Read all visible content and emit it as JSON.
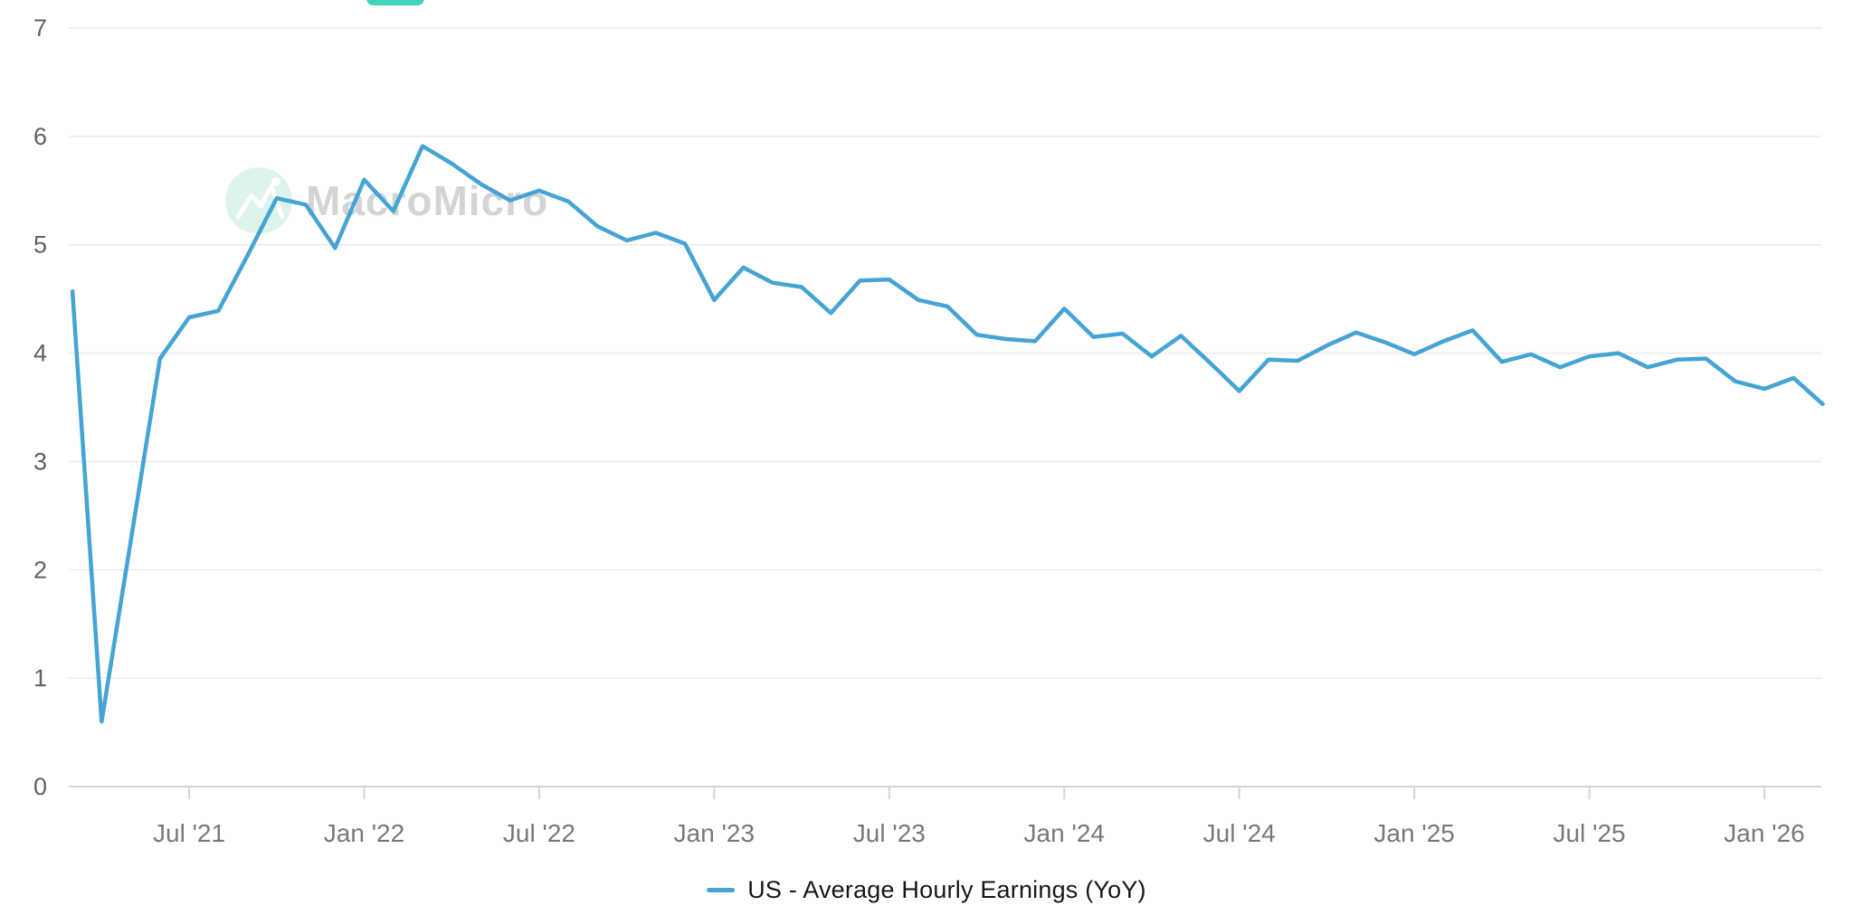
{
  "chart_data": {
    "type": "line",
    "title": "",
    "xlabel": "",
    "ylabel": "",
    "ylim": [
      0,
      7
    ],
    "y_ticks": [
      0,
      1,
      2,
      3,
      4,
      5,
      6,
      7
    ],
    "grid": true,
    "legend_position": "bottom-center",
    "x_tick_labels": [
      "Jul '21",
      "Jan '22",
      "Jul '22",
      "Jan '23",
      "Jul '23",
      "Jan '24",
      "Jul '24",
      "Jan '25",
      "Jul '25",
      "Jan '26"
    ],
    "x_tick_indices": [
      4,
      10,
      16,
      22,
      28,
      34,
      40,
      46,
      52,
      58
    ],
    "x": [
      "2021-03",
      "2021-04",
      "2021-05",
      "2021-06",
      "2021-07",
      "2021-08",
      "2021-09",
      "2021-10",
      "2021-11",
      "2021-12",
      "2022-01",
      "2022-02",
      "2022-03",
      "2022-04",
      "2022-05",
      "2022-06",
      "2022-07",
      "2022-08",
      "2022-09",
      "2022-10",
      "2022-11",
      "2022-12",
      "2023-01",
      "2023-02",
      "2023-03",
      "2023-04",
      "2023-05",
      "2023-06",
      "2023-07",
      "2023-08",
      "2023-09",
      "2023-10",
      "2023-11",
      "2023-12",
      "2024-01",
      "2024-02",
      "2024-03",
      "2024-04",
      "2024-05",
      "2024-06",
      "2024-07",
      "2024-08",
      "2024-09",
      "2024-10",
      "2024-11",
      "2024-12",
      "2025-01",
      "2025-02",
      "2025-03",
      "2025-04",
      "2025-05",
      "2025-06",
      "2025-07",
      "2025-08",
      "2025-09",
      "2025-10",
      "2025-11",
      "2025-12",
      "2026-01",
      "2026-02",
      "2026-03"
    ],
    "series": [
      {
        "name": "US - Average Hourly Earnings (YoY)",
        "color": "#44a4d3",
        "values": [
          4.57,
          0.6,
          2.27,
          3.95,
          4.33,
          4.39,
          4.9,
          5.43,
          5.37,
          4.97,
          5.6,
          5.31,
          5.91,
          5.75,
          5.56,
          5.41,
          5.5,
          5.4,
          5.17,
          5.04,
          5.11,
          5.01,
          4.49,
          4.79,
          4.65,
          4.61,
          4.37,
          4.67,
          4.68,
          4.49,
          4.43,
          4.17,
          4.13,
          4.11,
          4.41,
          4.15,
          4.18,
          3.97,
          4.16,
          3.91,
          3.65,
          3.94,
          3.93,
          4.07,
          4.19,
          4.1,
          3.99,
          4.11,
          4.21,
          3.92,
          3.99,
          3.87,
          3.97,
          4.0,
          3.87,
          3.94,
          3.95,
          3.74,
          3.67,
          3.77,
          3.53
        ]
      }
    ]
  },
  "legend": {
    "label": "US - Average Hourly Earnings (YoY)"
  },
  "watermark": {
    "text": "MacroMicro"
  },
  "colors": {
    "line": "#44a4d3",
    "badge_teal": "#3fd7b5",
    "watermark_circle": "#dcf4ec",
    "watermark_text": "#c9cacd",
    "gridline": "#ebebed",
    "axis_line": "#d5d5d8",
    "y_label": "#5f6064",
    "x_label": "#77787c"
  }
}
